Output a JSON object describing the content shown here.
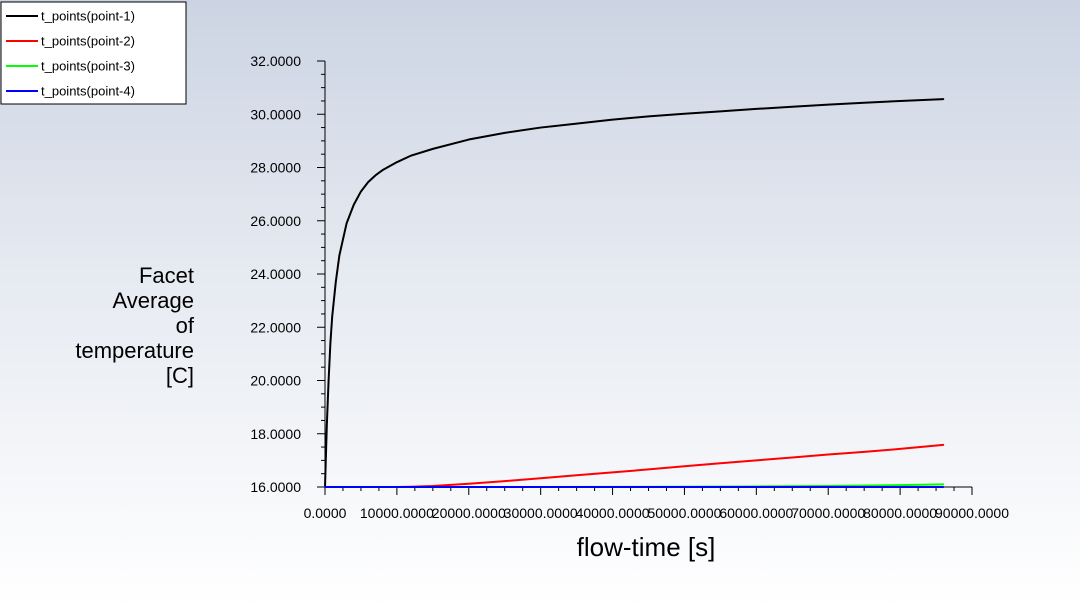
{
  "chart_data": {
    "type": "line",
    "xlabel": "flow-time [s]",
    "ylabel_lines": [
      "Facet",
      "Average",
      "of",
      "temperature",
      "[C]"
    ],
    "xlim": [
      0,
      90000
    ],
    "ylim": [
      16,
      32
    ],
    "x_ticks": [
      0,
      10000,
      20000,
      30000,
      40000,
      50000,
      60000,
      70000,
      80000,
      90000
    ],
    "x_tick_labels": [
      "0.0000",
      "10000.0000",
      "20000.0000",
      "30000.0000",
      "40000.0000",
      "50000.0000",
      "60000.0000",
      "70000.0000",
      "80000.0000",
      "90000.0000"
    ],
    "y_ticks": [
      16,
      18,
      20,
      22,
      24,
      26,
      28,
      30,
      32
    ],
    "y_tick_labels": [
      "16.0000",
      "18.0000",
      "20.0000",
      "22.0000",
      "24.0000",
      "26.0000",
      "28.0000",
      "30.0000",
      "32.0000"
    ],
    "legend_position": "top-left",
    "grid": false,
    "series": [
      {
        "name": "t_points(point-1)",
        "color": "#000000",
        "x": [
          0,
          250,
          500,
          750,
          1000,
          1500,
          2000,
          3000,
          4000,
          5000,
          6000,
          7000,
          8000,
          10000,
          12000,
          15000,
          20000,
          25000,
          30000,
          35000,
          40000,
          45000,
          50000,
          55000,
          60000,
          65000,
          70000,
          75000,
          80000,
          86000
        ],
        "y": [
          16.0,
          18.3,
          20.0,
          21.4,
          22.4,
          23.7,
          24.7,
          25.9,
          26.6,
          27.1,
          27.45,
          27.7,
          27.9,
          28.2,
          28.45,
          28.7,
          29.05,
          29.3,
          29.5,
          29.65,
          29.8,
          29.92,
          30.02,
          30.11,
          30.2,
          30.28,
          30.36,
          30.43,
          30.5,
          30.57
        ]
      },
      {
        "name": "t_points(point-2)",
        "color": "#ff0000",
        "x": [
          0,
          5000,
          10000,
          12000,
          15000,
          20000,
          25000,
          30000,
          35000,
          40000,
          45000,
          50000,
          55000,
          60000,
          65000,
          70000,
          75000,
          80000,
          86000
        ],
        "y": [
          16.0,
          16.0,
          16.0,
          16.01,
          16.04,
          16.12,
          16.22,
          16.33,
          16.44,
          16.55,
          16.66,
          16.78,
          16.89,
          17.0,
          17.11,
          17.22,
          17.32,
          17.43,
          17.58
        ]
      },
      {
        "name": "t_points(point-3)",
        "color": "#00ff00",
        "x": [
          0,
          30000,
          50000,
          60000,
          70000,
          80000,
          86000
        ],
        "y": [
          16.0,
          16.0,
          16.01,
          16.02,
          16.04,
          16.07,
          16.1
        ]
      },
      {
        "name": "t_points(point-4)",
        "color": "#0000ff",
        "x": [
          0,
          86000
        ],
        "y": [
          16.0,
          16.0
        ]
      }
    ]
  }
}
